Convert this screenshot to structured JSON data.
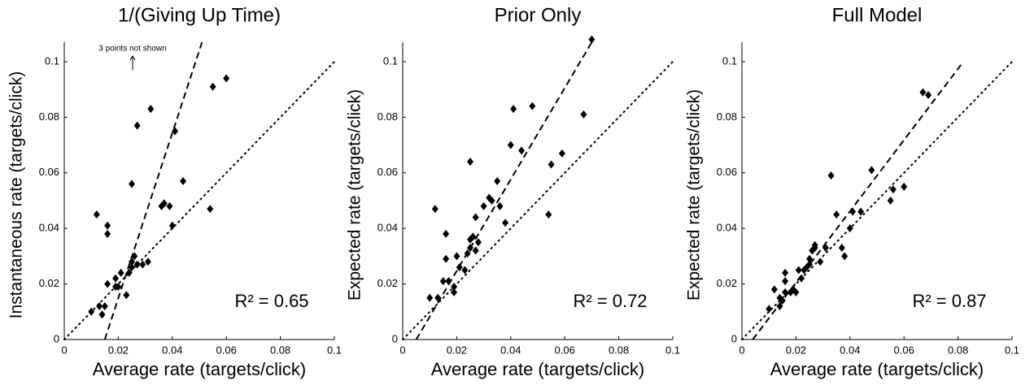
{
  "chart_data": [
    {
      "type": "scatter",
      "title": "1/(Giving Up Time)",
      "xlabel": "Average rate (targets/click)",
      "ylabel": "Instantaneous rate (targets/click)",
      "annotation": "R² = 0.65",
      "note": "3 points not shown",
      "x": [
        0.01,
        0.013,
        0.014,
        0.015,
        0.012,
        0.016,
        0.016,
        0.016,
        0.019,
        0.019,
        0.02,
        0.021,
        0.023,
        0.024,
        0.025,
        0.025,
        0.026,
        0.027,
        0.029,
        0.031,
        0.025,
        0.027,
        0.032,
        0.041,
        0.036,
        0.037,
        0.039,
        0.04,
        0.044,
        0.054,
        0.055,
        0.06
      ],
      "y": [
        0.01,
        0.012,
        0.009,
        0.012,
        0.045,
        0.041,
        0.038,
        0.02,
        0.019,
        0.022,
        0.019,
        0.024,
        0.016,
        0.024,
        0.026,
        0.028,
        0.03,
        0.027,
        0.027,
        0.028,
        0.056,
        0.077,
        0.083,
        0.075,
        0.048,
        0.049,
        0.048,
        0.041,
        0.057,
        0.047,
        0.091,
        0.094
      ],
      "color": "#000000",
      "fit_line": {
        "x": [
          0.015,
          0.051
        ],
        "y": [
          0,
          0.107
        ]
      },
      "reference_line": {
        "x": [
          0,
          0.1
        ],
        "y": [
          0,
          0.1
        ]
      },
      "xlim": [
        0,
        0.1
      ],
      "ylim": [
        0,
        0.107
      ],
      "xticks": [
        0,
        0.02,
        0.04,
        0.06,
        0.08,
        0.1
      ],
      "yticks": [
        0,
        0.02,
        0.04,
        0.06,
        0.08,
        0.1
      ]
    },
    {
      "type": "scatter",
      "title": "Prior Only",
      "xlabel": "Average rate (targets/click)",
      "ylabel": "Expected rate (targets/click)",
      "annotation": "R² = 0.72",
      "x": [
        0.01,
        0.012,
        0.013,
        0.015,
        0.016,
        0.016,
        0.017,
        0.019,
        0.019,
        0.02,
        0.021,
        0.023,
        0.024,
        0.025,
        0.025,
        0.025,
        0.026,
        0.027,
        0.027,
        0.028,
        0.03,
        0.032,
        0.033,
        0.035,
        0.036,
        0.038,
        0.04,
        0.041,
        0.044,
        0.048,
        0.054,
        0.055,
        0.059,
        0.067,
        0.07
      ],
      "y": [
        0.015,
        0.047,
        0.015,
        0.021,
        0.029,
        0.038,
        0.021,
        0.017,
        0.019,
        0.03,
        0.026,
        0.025,
        0.031,
        0.033,
        0.036,
        0.064,
        0.037,
        0.032,
        0.044,
        0.035,
        0.048,
        0.051,
        0.05,
        0.057,
        0.048,
        0.042,
        0.07,
        0.083,
        0.068,
        0.084,
        0.045,
        0.063,
        0.067,
        0.081,
        0.108
      ],
      "color": "#000000",
      "fit_line": {
        "x": [
          0.005,
          0.07
        ],
        "y": [
          0,
          0.107
        ]
      },
      "reference_line": {
        "x": [
          0,
          0.1
        ],
        "y": [
          0,
          0.1
        ]
      },
      "xlim": [
        0,
        0.1
      ],
      "ylim": [
        0,
        0.107
      ],
      "xticks": [
        0,
        0.02,
        0.04,
        0.06,
        0.08,
        0.1
      ],
      "yticks": [
        0,
        0.02,
        0.04,
        0.06,
        0.08,
        0.1
      ]
    },
    {
      "type": "scatter",
      "title": "Full Model",
      "xlabel": "Average rate (targets/click)",
      "ylabel": "Expected rate (targets/click)",
      "annotation": "R² = 0.87",
      "x": [
        0.01,
        0.012,
        0.014,
        0.014,
        0.015,
        0.016,
        0.016,
        0.016,
        0.018,
        0.019,
        0.02,
        0.021,
        0.022,
        0.023,
        0.024,
        0.025,
        0.025,
        0.026,
        0.027,
        0.027,
        0.029,
        0.031,
        0.033,
        0.035,
        0.037,
        0.038,
        0.04,
        0.041,
        0.044,
        0.048,
        0.055,
        0.056,
        0.06,
        0.067,
        0.069
      ],
      "y": [
        0.011,
        0.018,
        0.012,
        0.015,
        0.014,
        0.017,
        0.021,
        0.024,
        0.017,
        0.018,
        0.017,
        0.025,
        0.022,
        0.025,
        0.026,
        0.027,
        0.029,
        0.032,
        0.033,
        0.034,
        0.028,
        0.033,
        0.059,
        0.045,
        0.033,
        0.03,
        0.04,
        0.046,
        0.046,
        0.061,
        0.05,
        0.054,
        0.055,
        0.089,
        0.088
      ],
      "color": "#000000",
      "fit_line": {
        "x": [
          0.004,
          0.082
        ],
        "y": [
          0,
          0.1
        ]
      },
      "reference_line": {
        "x": [
          0,
          0.1
        ],
        "y": [
          0,
          0.1
        ]
      },
      "xlim": [
        0,
        0.1
      ],
      "ylim": [
        0,
        0.107
      ],
      "xticks": [
        0,
        0.02,
        0.04,
        0.06,
        0.08,
        0.1
      ],
      "yticks": [
        0,
        0.02,
        0.04,
        0.06,
        0.08,
        0.1
      ]
    }
  ]
}
